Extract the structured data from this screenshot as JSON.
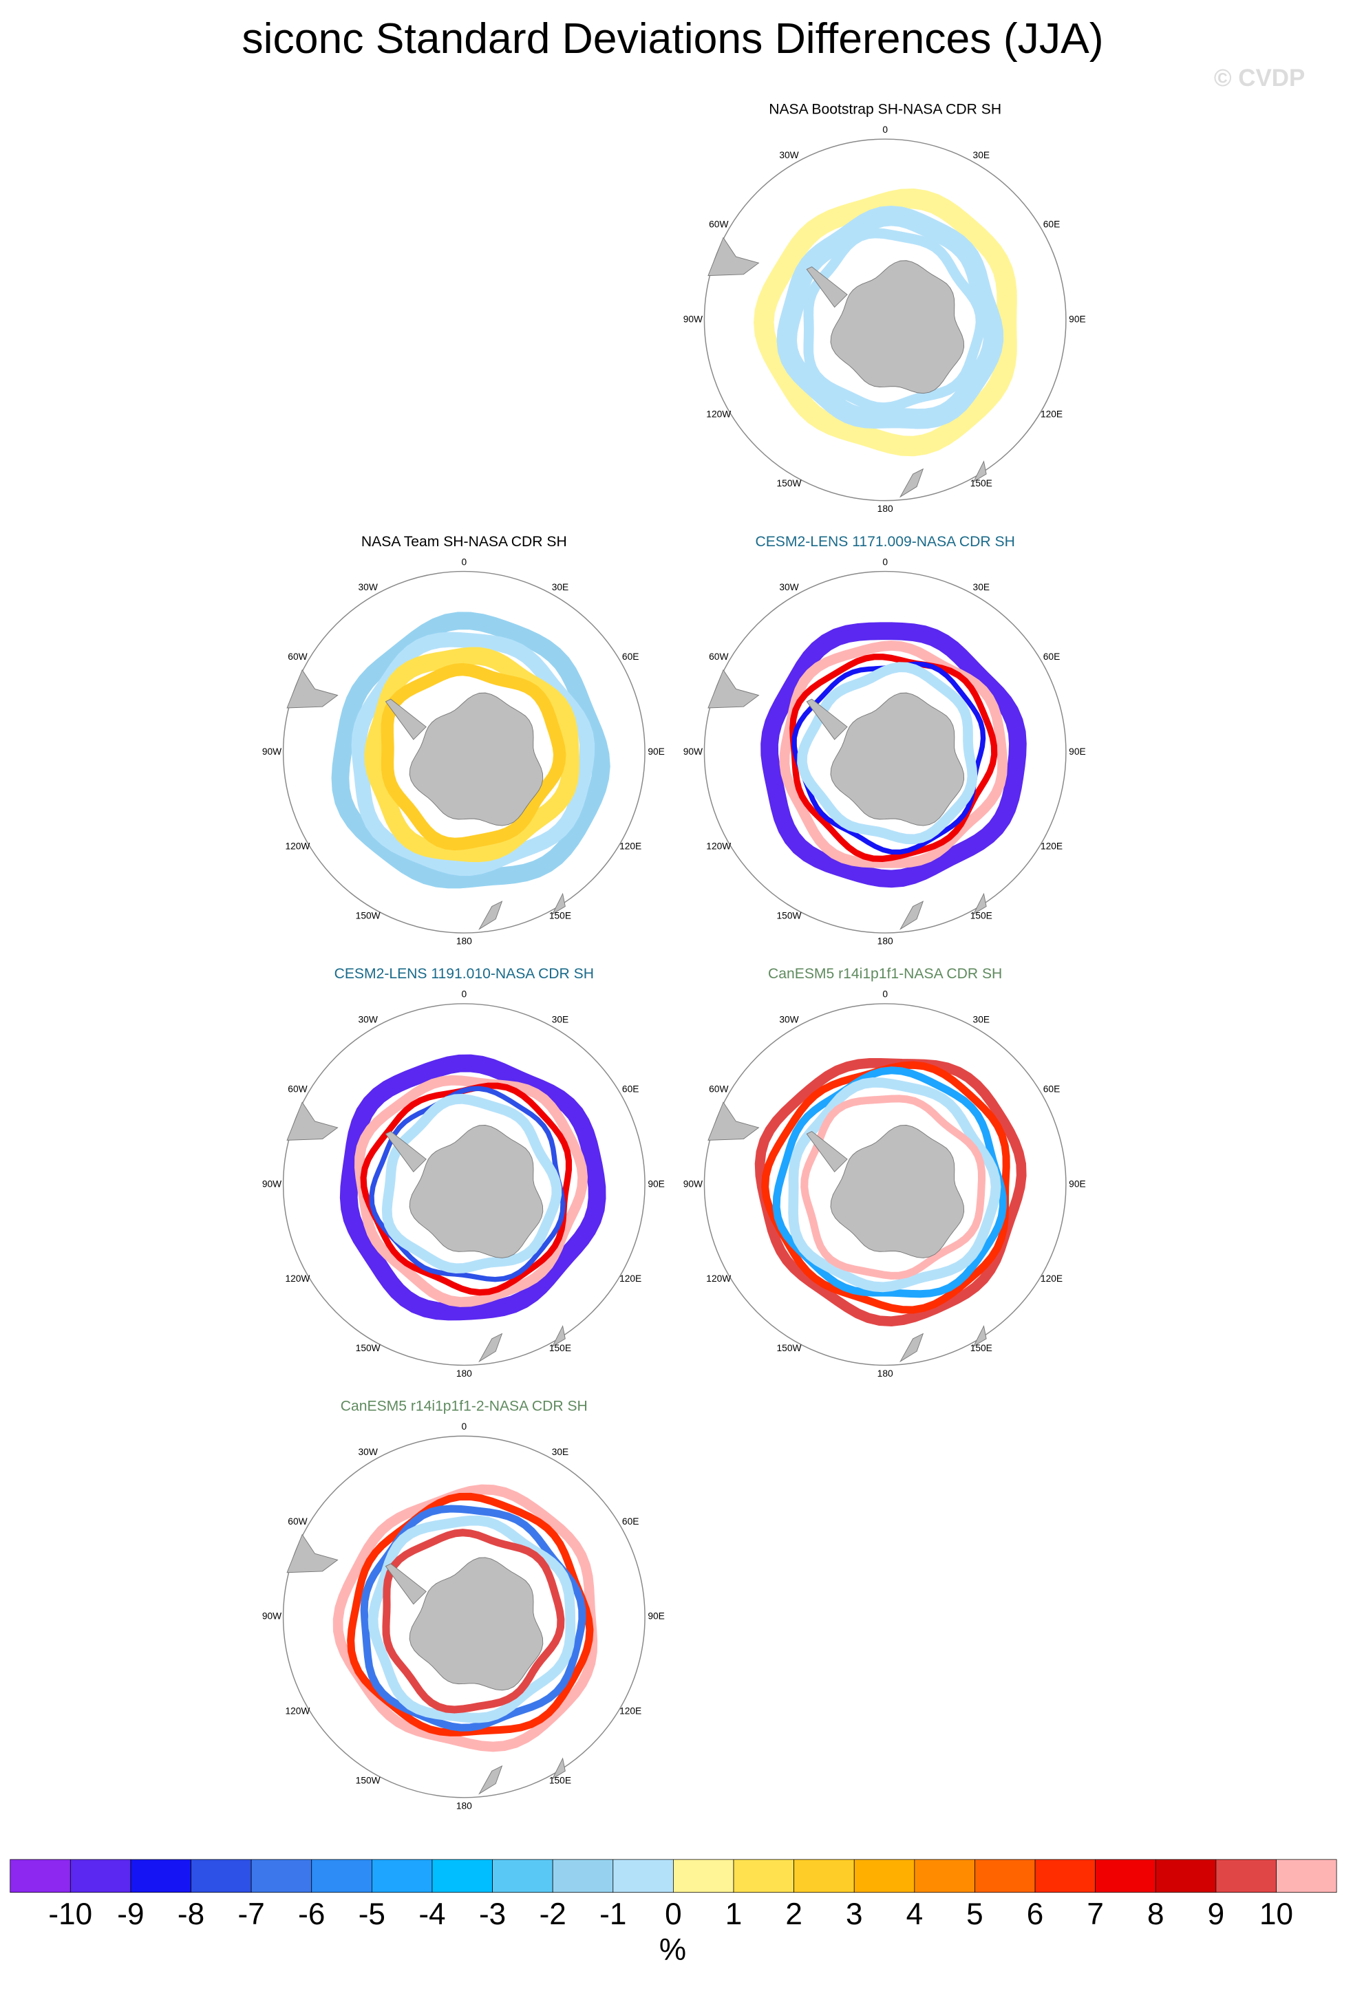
{
  "chart_data": {
    "type": "polar-map",
    "title": "siconc Standard Deviations Differences (JJA)",
    "watermark": "© CVDP",
    "panels": [
      {
        "title": "NASA Bootstrap SH-NASA CDR SH",
        "title_color": "#000000"
      },
      {
        "title": "NASA Team SH-NASA CDR SH",
        "title_color": "#000000"
      },
      {
        "title": "CESM2-LENS 1171.009-NASA CDR SH",
        "title_color": "#1a6a8a"
      },
      {
        "title": "CESM2-LENS 1191.010-NASA CDR SH",
        "title_color": "#1a6a8a"
      },
      {
        "title": "CanESM5 r14i1p1f1-NASA CDR SH",
        "title_color": "#5f8a5f"
      },
      {
        "title": "CanESM5 r14i1p1f1-2-NASA CDR SH",
        "title_color": "#5f8a5f"
      }
    ],
    "lon_labels": [
      "0",
      "30E",
      "60E",
      "90E",
      "120E",
      "150E",
      "180",
      "150W",
      "120W",
      "90W",
      "60W",
      "30W"
    ],
    "colorbar": {
      "colors": [
        "#8c28f0",
        "#5a28f0",
        "#1414f5",
        "#2d50e6",
        "#3c78eb",
        "#2d8cf5",
        "#1ea5ff",
        "#00beff",
        "#5ac8f5",
        "#96d2f0",
        "#b4e1fa",
        "#fff596",
        "#ffe150",
        "#ffcd28",
        "#ffaf00",
        "#ff8c00",
        "#ff6400",
        "#ff2d00",
        "#f00000",
        "#d20000",
        "#e14646",
        "#ffb4b4"
      ],
      "ticks": [
        -10,
        -9,
        -8,
        -7,
        -6,
        -5,
        -4,
        -3,
        -2,
        -1,
        0,
        1,
        2,
        3,
        4,
        5,
        6,
        7,
        8,
        9,
        10
      ],
      "label": "%"
    }
  }
}
